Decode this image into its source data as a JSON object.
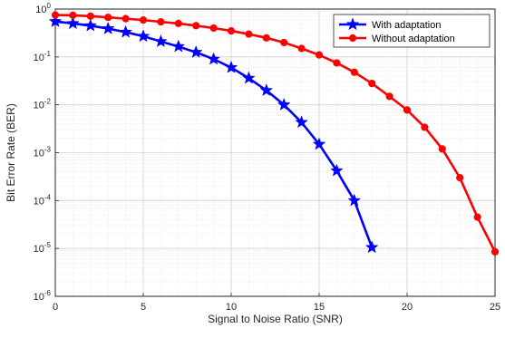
{
  "chart_data": {
    "type": "line",
    "title": "",
    "xlabel": "Signal to Noise Ratio (SNR)",
    "ylabel": "Bit Error Rate (BER)",
    "xlim": [
      0,
      25
    ],
    "ylim": [
      1e-06,
      1
    ],
    "yscale": "log",
    "grid": true,
    "legend": "top-right",
    "x_ticks": [
      0,
      5,
      10,
      15,
      20,
      25
    ],
    "y_ticks": [
      {
        "value": 1,
        "base": "10",
        "exp": "0"
      },
      {
        "value": 0.1,
        "base": "10",
        "exp": "-1"
      },
      {
        "value": 0.01,
        "base": "10",
        "exp": "-2"
      },
      {
        "value": 0.001,
        "base": "10",
        "exp": "-3"
      },
      {
        "value": 0.0001,
        "base": "10",
        "exp": "-4"
      },
      {
        "value": 1e-05,
        "base": "10",
        "exp": "-5"
      },
      {
        "value": 1e-06,
        "base": "10",
        "exp": "-6"
      }
    ],
    "series": [
      {
        "name": "With adaptation",
        "color": "#0000ff",
        "marker": "star",
        "x": [
          0,
          1,
          2,
          3,
          4,
          5,
          6,
          7,
          8,
          9,
          10,
          11,
          12,
          13,
          14,
          15,
          16,
          17,
          18
        ],
        "values": [
          0.55,
          0.5,
          0.45,
          0.39,
          0.33,
          0.27,
          0.21,
          0.165,
          0.125,
          0.09,
          0.06,
          0.036,
          0.02,
          0.01,
          0.0043,
          0.0015,
          0.00042,
          0.0001,
          1.05e-05
        ]
      },
      {
        "name": "Without adaptation",
        "color": "#ff0000",
        "marker": "circle",
        "x": [
          0,
          1,
          2,
          3,
          4,
          5,
          6,
          7,
          8,
          9,
          10,
          11,
          12,
          13,
          14,
          15,
          16,
          17,
          18,
          19,
          20,
          21,
          22,
          23,
          24,
          25
        ],
        "values": [
          0.75,
          0.74,
          0.71,
          0.67,
          0.63,
          0.59,
          0.54,
          0.5,
          0.45,
          0.4,
          0.35,
          0.3,
          0.25,
          0.2,
          0.15,
          0.11,
          0.075,
          0.048,
          0.028,
          0.015,
          0.0078,
          0.0034,
          0.0012,
          0.0003,
          4.5e-05,
          8.5e-06
        ]
      }
    ]
  }
}
